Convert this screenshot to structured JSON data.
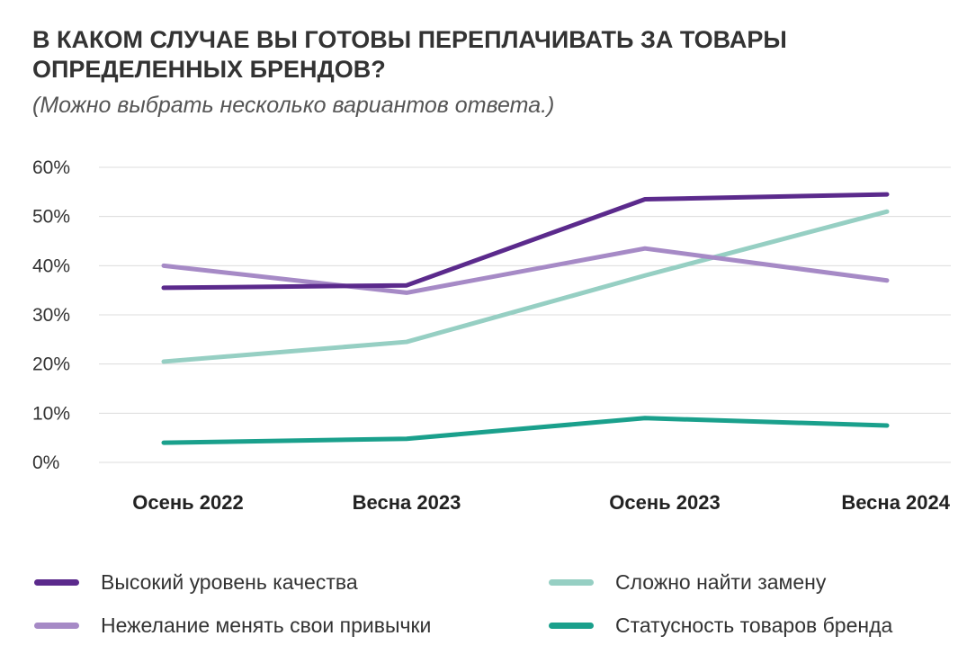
{
  "chart_data": {
    "type": "line",
    "title": "В КАКОМ СЛУЧАЕ ВЫ ГОТОВЫ ПЕРЕПЛАЧИВАТЬ ЗА ТОВАРЫ ОПРЕДЕЛЕННЫХ БРЕНДОВ?",
    "subtitle": "(Можно выбрать несколько вариантов ответа.)",
    "categories": [
      "Осень 2022",
      "Весна 2023",
      "Осень 2023",
      "Весна 2024"
    ],
    "ylim": [
      0,
      60
    ],
    "yticks": [
      0,
      10,
      20,
      30,
      40,
      50,
      60
    ],
    "ytick_labels": [
      "0%",
      "10%",
      "20%",
      "30%",
      "40%",
      "50%",
      "60%"
    ],
    "grid": true,
    "legend_position": "bottom",
    "series": [
      {
        "name": "Высокий уровень качества",
        "color": "#5b2a8c",
        "values": [
          35.5,
          36,
          53.5,
          54.5
        ]
      },
      {
        "name": "Нежелание менять свои привычки",
        "color": "#a68ac6",
        "values": [
          40,
          34.5,
          43.5,
          37
        ]
      },
      {
        "name": "Сложно найти замену",
        "color": "#96cfc3",
        "values": [
          20.5,
          24.5,
          38,
          51
        ]
      },
      {
        "name": "Статусность товаров бренда",
        "color": "#1aa08c",
        "values": [
          4,
          4.8,
          9,
          7.5
        ]
      }
    ]
  }
}
